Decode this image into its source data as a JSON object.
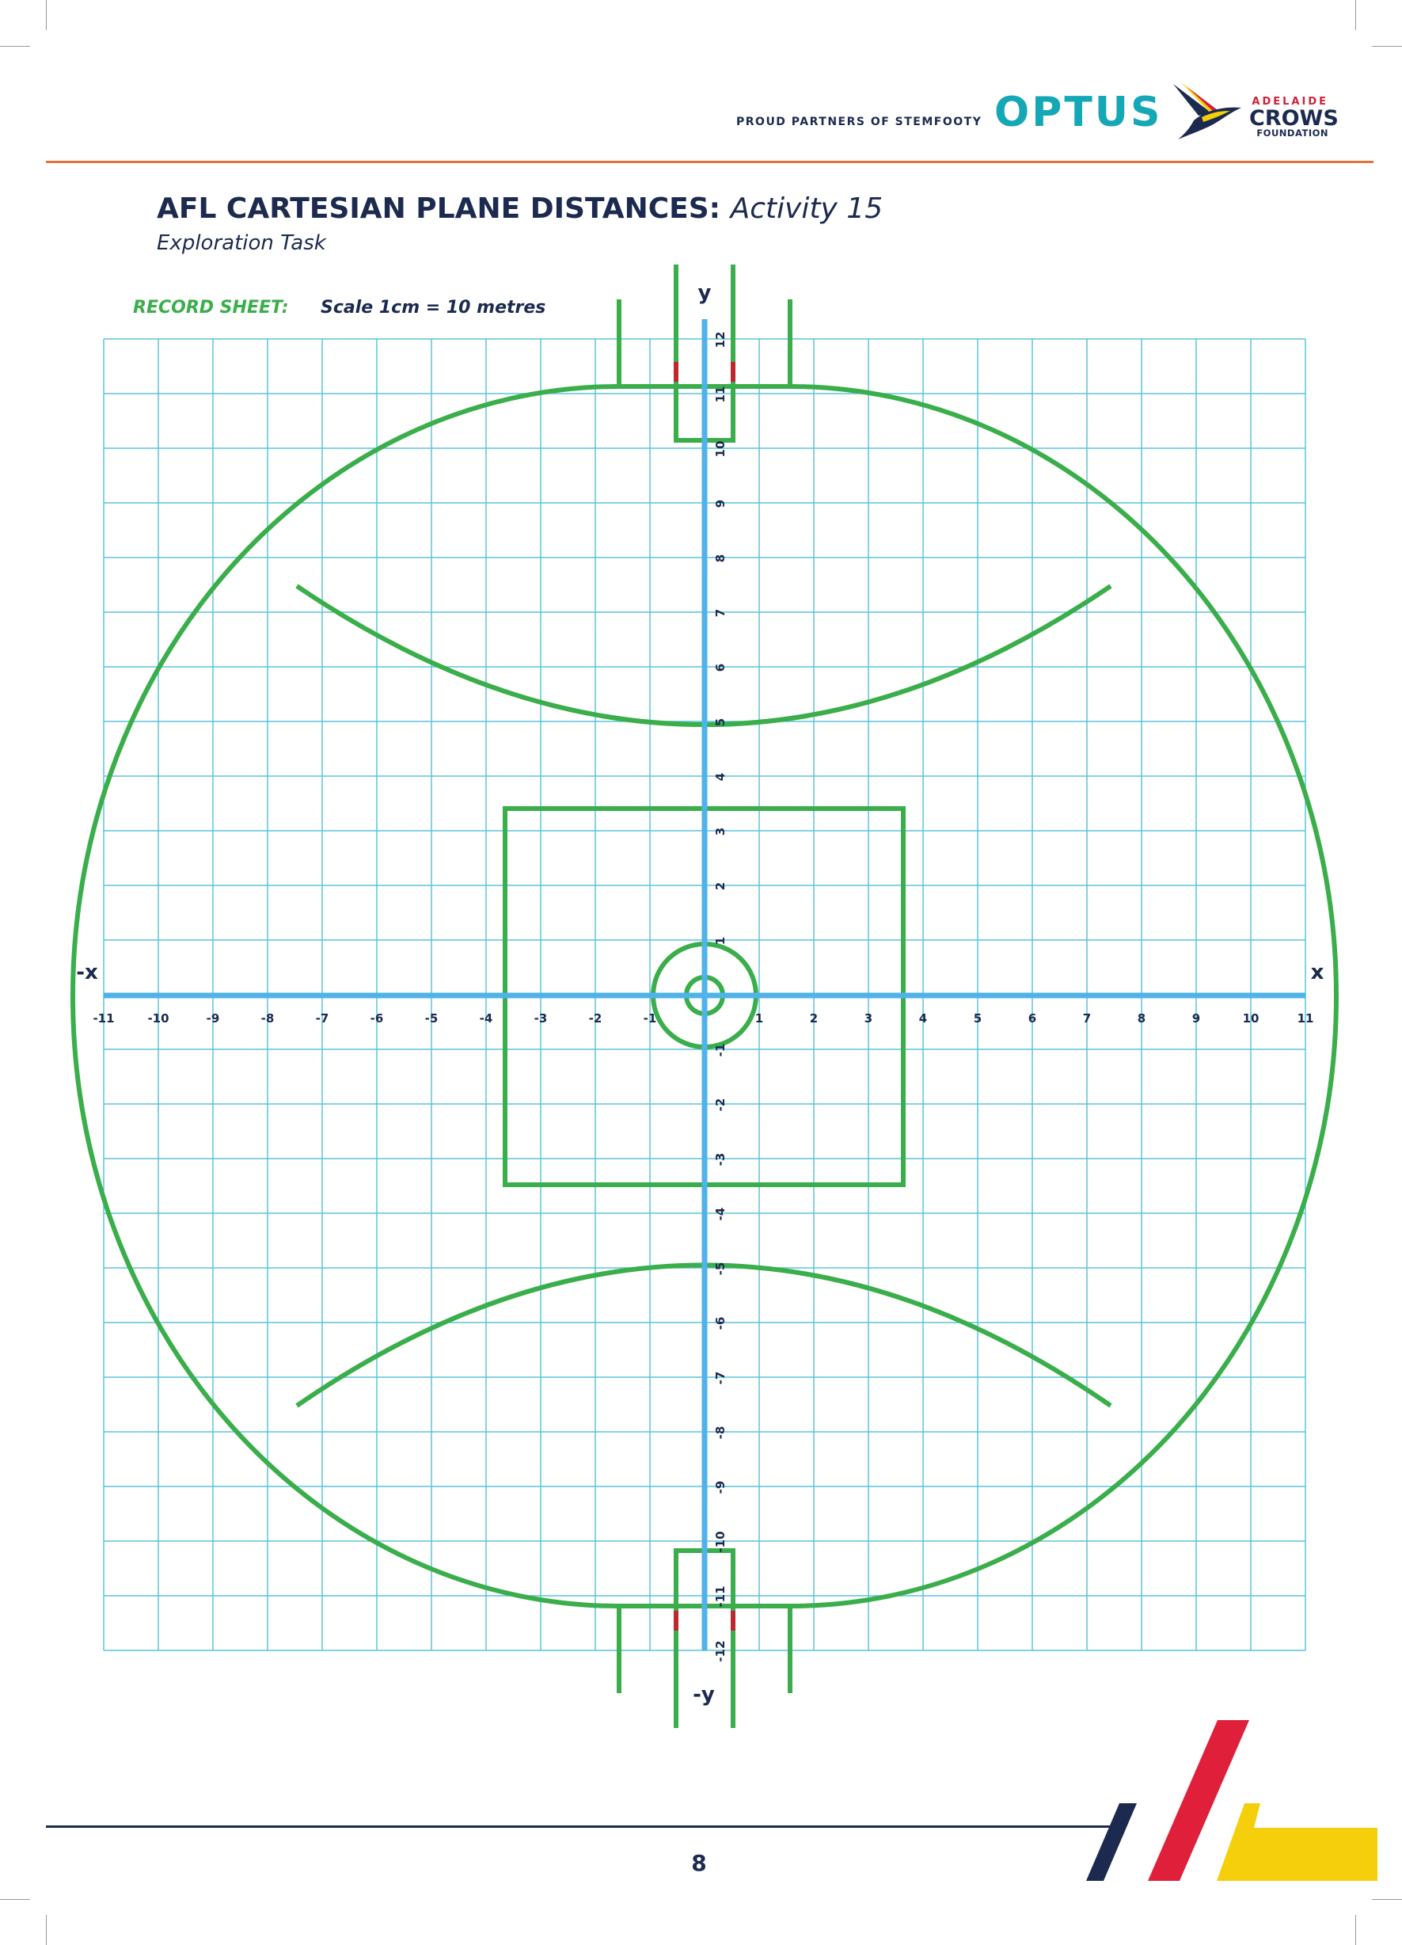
{
  "header": {
    "partners_label": "PROUD PARTNERS OF STEMFOOTY",
    "optus_logo": "OPTUS",
    "crows_logo": {
      "line1": "ADELAIDE",
      "line2": "CROWS",
      "line3": "FOUNDATION",
      "icon": "crow-bird-icon"
    }
  },
  "title": {
    "main": "AFL CARTESIAN PLANE DISTANCES:",
    "activity": "Activity 15",
    "subtitle": "Exploration Task"
  },
  "record_sheet": {
    "label": "RECORD SHEET:",
    "scale": "Scale 1cm = 10 metres"
  },
  "plane": {
    "x_label_pos": "x",
    "x_label_neg": "-x",
    "y_label_pos": "y",
    "y_label_neg": "-y",
    "x_ticks": [
      "-11",
      "-10",
      "-9",
      "-8",
      "-7",
      "-6",
      "-5",
      "-4",
      "-3",
      "-2",
      "-1",
      "1",
      "2",
      "3",
      "4",
      "5",
      "6",
      "7",
      "8",
      "9",
      "10",
      "11"
    ],
    "y_ticks": [
      "12",
      "11",
      "10",
      "9",
      "8",
      "7",
      "6",
      "5",
      "4",
      "3",
      "2",
      "1",
      "-1",
      "-2",
      "-3",
      "-4",
      "-5",
      "-6",
      "-7",
      "-8",
      "-9",
      "-10",
      "-11",
      "-12"
    ],
    "grid_color": "#5cc3dc",
    "axis_color": "#4fb3ea",
    "field_line_color": "#3aae4b",
    "goal_post_color": "#c0262d"
  },
  "footer": {
    "page_number": "8",
    "stripe_colors": [
      "#1b2a4e",
      "#e0203a",
      "#f6cf0c"
    ]
  }
}
